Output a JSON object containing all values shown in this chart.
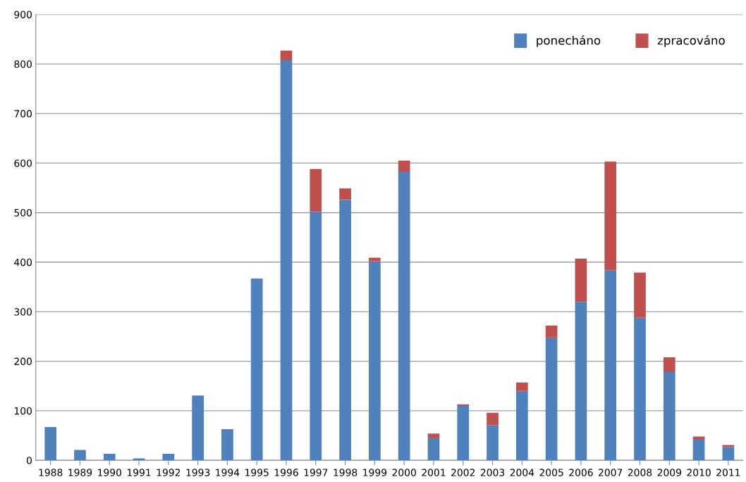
{
  "chart_data": {
    "type": "bar",
    "stacked": true,
    "categories": [
      "1988",
      "1989",
      "1990",
      "1991",
      "1992",
      "1993",
      "1994",
      "1995",
      "1996",
      "1997",
      "1998",
      "1999",
      "2000",
      "2001",
      "2002",
      "2003",
      "2004",
      "2005",
      "2006",
      "2007",
      "2008",
      "2009",
      "2010",
      "2011"
    ],
    "series": [
      {
        "name": "ponecháno",
        "color": "#4f81bd",
        "values": [
          67,
          21,
          13,
          4,
          13,
          131,
          63,
          367,
          807,
          502,
          526,
          402,
          582,
          46,
          110,
          71,
          140,
          248,
          320,
          384,
          288,
          178,
          43,
          27
        ]
      },
      {
        "name": "zpracováno",
        "color": "#c0504d",
        "values": [
          0,
          0,
          0,
          0,
          0,
          0,
          0,
          0,
          20,
          86,
          23,
          7,
          23,
          8,
          3,
          25,
          17,
          24,
          87,
          219,
          91,
          30,
          5,
          4
        ]
      }
    ],
    "ylim": [
      0,
      900
    ],
    "yticks": [
      0,
      100,
      200,
      300,
      400,
      500,
      600,
      700,
      800,
      900
    ],
    "grid": "y",
    "legend": "top right"
  }
}
